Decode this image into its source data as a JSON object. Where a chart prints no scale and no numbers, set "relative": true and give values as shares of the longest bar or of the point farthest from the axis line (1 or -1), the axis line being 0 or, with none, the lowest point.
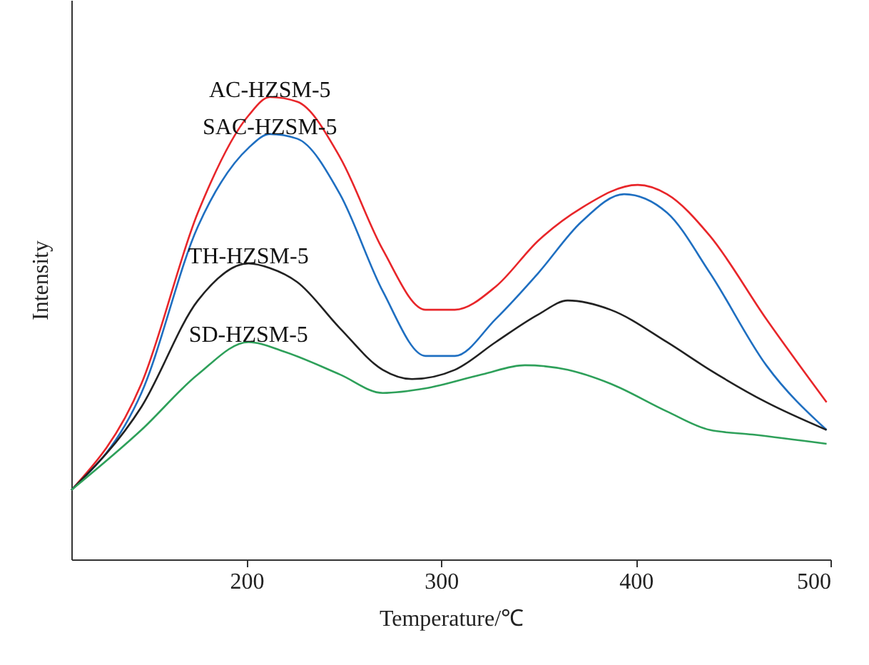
{
  "chart_data": {
    "type": "line",
    "relative": true,
    "xlabel": "Temperature/℃",
    "ylabel": "Intensity",
    "xlim": [
      110,
      500
    ],
    "xticks": [
      200,
      300,
      400,
      500
    ],
    "grid": false,
    "marker": "none",
    "line_style": "solid",
    "series": [
      {
        "name": "AC-HZSM-5",
        "color": "#e8262a",
        "x": [
          110,
          146,
          175,
          201,
          212,
          226,
          248,
          270,
          292,
          307,
          328,
          350,
          372,
          401,
          416,
          438,
          467,
          498
        ],
        "values": [
          0.15,
          0.38,
          0.75,
          0.96,
          1.0,
          0.99,
          0.87,
          0.67,
          0.54,
          0.54,
          0.59,
          0.69,
          0.76,
          0.81,
          0.79,
          0.7,
          0.52,
          0.34
        ]
      },
      {
        "name": "SAC-HZSM-5",
        "color": "#1f6fc1",
        "x": [
          110,
          146,
          175,
          201,
          212,
          226,
          248,
          270,
          292,
          307,
          328,
          350,
          372,
          394,
          416,
          438,
          467,
          498
        ],
        "values": [
          0.15,
          0.36,
          0.72,
          0.89,
          0.92,
          0.91,
          0.79,
          0.58,
          0.44,
          0.44,
          0.52,
          0.62,
          0.73,
          0.79,
          0.75,
          0.62,
          0.42,
          0.28
        ]
      },
      {
        "name": "TH-HZSM-5",
        "color": "#222222",
        "x": [
          110,
          146,
          175,
          201,
          212,
          226,
          248,
          270,
          285,
          307,
          328,
          350,
          365,
          387,
          416,
          438,
          467,
          498
        ],
        "values": [
          0.15,
          0.33,
          0.56,
          0.64,
          0.63,
          0.6,
          0.5,
          0.41,
          0.39,
          0.41,
          0.47,
          0.53,
          0.56,
          0.54,
          0.47,
          0.41,
          0.34,
          0.28
        ]
      },
      {
        "name": "SD-HZSM-5",
        "color": "#2ea05a",
        "x": [
          110,
          146,
          175,
          201,
          219,
          248,
          270,
          292,
          321,
          343,
          365,
          387,
          416,
          438,
          460,
          498
        ],
        "values": [
          0.15,
          0.28,
          0.4,
          0.47,
          0.45,
          0.4,
          0.36,
          0.37,
          0.4,
          0.42,
          0.41,
          0.38,
          0.32,
          0.28,
          0.27,
          0.25
        ]
      }
    ]
  }
}
